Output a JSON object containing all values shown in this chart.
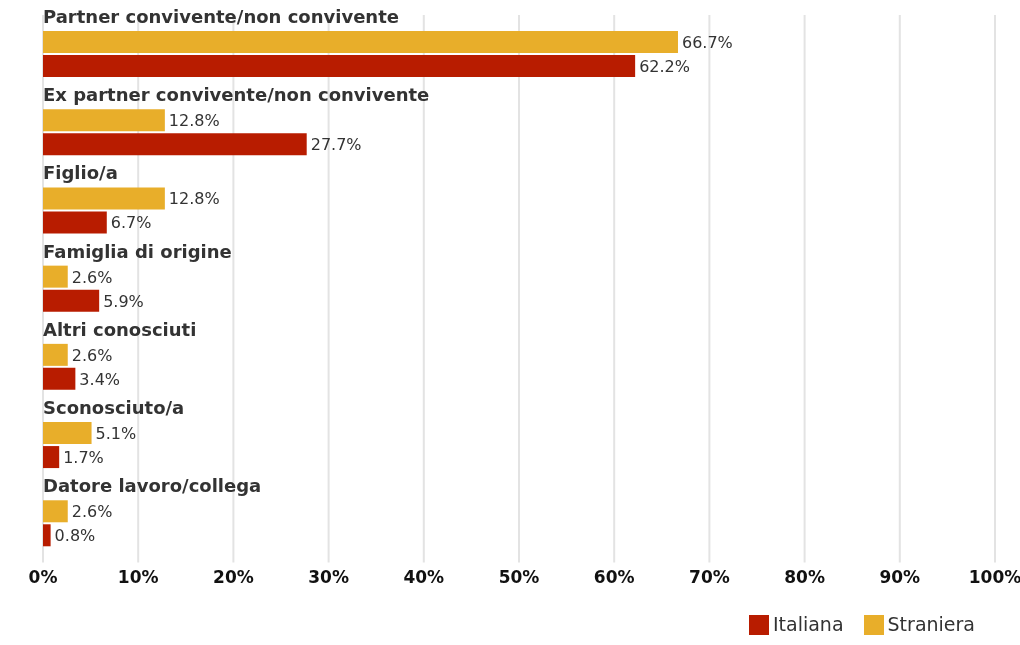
{
  "chart_data": {
    "type": "bar",
    "orientation": "horizontal",
    "categories": [
      "Partner convivente/non convivente",
      "Ex partner convivente/non convivente",
      "Figlio/a",
      "Famiglia di origine",
      "Altri conosciuti",
      "Sconosciuto/a",
      "Datore lavoro/collega"
    ],
    "series": [
      {
        "name": "Straniera",
        "color": "#e8ae2a",
        "values": [
          66.7,
          12.8,
          12.8,
          2.6,
          2.6,
          5.1,
          2.6
        ],
        "value_labels": [
          "66.7%",
          "12.8%",
          "12.8%",
          "2.6%",
          "2.6%",
          "5.1%",
          "2.6%"
        ]
      },
      {
        "name": "Italiana",
        "color": "#b81c00",
        "values": [
          62.2,
          27.7,
          6.7,
          5.9,
          3.4,
          1.7,
          0.8
        ],
        "value_labels": [
          "62.2%",
          "27.7%",
          "6.7%",
          "5.9%",
          "3.4%",
          "1.7%",
          "0.8%"
        ]
      }
    ],
    "xlim": [
      0,
      100
    ],
    "xticks": [
      {
        "value": 0,
        "label": "0%"
      },
      {
        "value": 10,
        "label": "10%"
      },
      {
        "value": 20,
        "label": "20%"
      },
      {
        "value": 30,
        "label": "30%"
      },
      {
        "value": 40,
        "label": "40%"
      },
      {
        "value": 50,
        "label": "50%"
      },
      {
        "value": 60,
        "label": "60%"
      },
      {
        "value": 70,
        "label": "70%"
      },
      {
        "value": 80,
        "label": "80%"
      },
      {
        "value": 90,
        "label": "90%"
      },
      {
        "value": 100,
        "label": "100%"
      }
    ],
    "grid": "x",
    "legend": "bottom right"
  }
}
